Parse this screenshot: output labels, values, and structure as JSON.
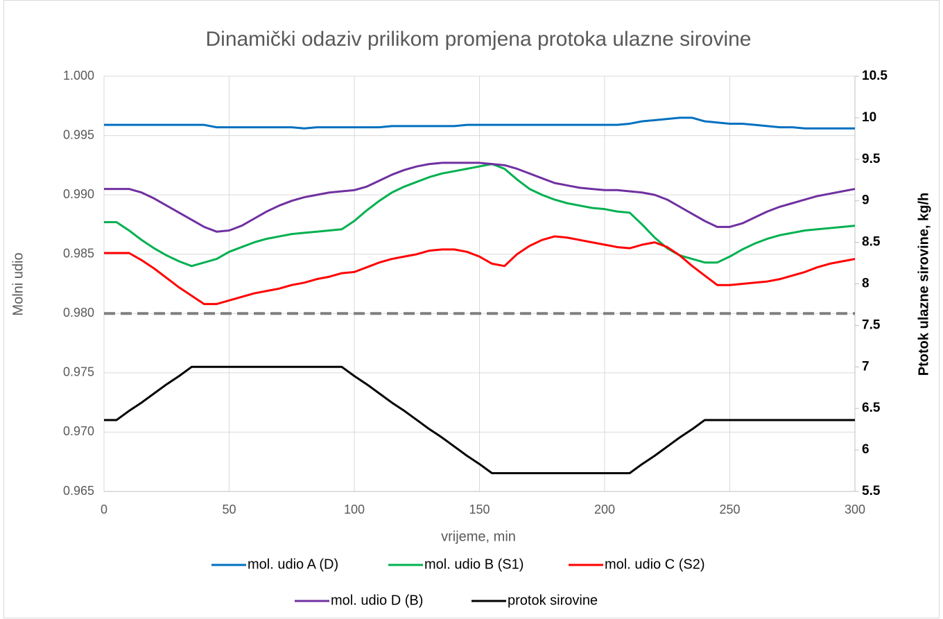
{
  "chart_data": {
    "type": "line",
    "title": "Dinamički odaziv prilikom promjena protoka ulazne sirovine",
    "xlabel": "vrijeme, min",
    "ylabel": "Molni udio",
    "y2label": "Ptotok ulazne sirovine, kg/h",
    "x": [
      0,
      5,
      10,
      15,
      20,
      25,
      30,
      35,
      40,
      45,
      50,
      55,
      60,
      65,
      70,
      75,
      80,
      85,
      90,
      95,
      100,
      105,
      110,
      115,
      120,
      125,
      130,
      135,
      140,
      145,
      150,
      155,
      160,
      165,
      170,
      175,
      180,
      185,
      190,
      195,
      200,
      205,
      210,
      215,
      220,
      225,
      230,
      235,
      240,
      245,
      250,
      255,
      260,
      265,
      270,
      275,
      280,
      285,
      290,
      295,
      300
    ],
    "xlim": [
      0,
      300
    ],
    "xticks": [
      0,
      50,
      100,
      150,
      200,
      250,
      300
    ],
    "ylim": [
      0.965,
      1.0
    ],
    "yticks": [
      {
        "value": 0.965,
        "label": "0.965"
      },
      {
        "value": 0.97,
        "label": "0.970"
      },
      {
        "value": 0.975,
        "label": "0.975"
      },
      {
        "value": 0.98,
        "label": "0.980"
      },
      {
        "value": 0.985,
        "label": "0.985"
      },
      {
        "value": 0.99,
        "label": "0.990"
      },
      {
        "value": 0.995,
        "label": "0.995"
      },
      {
        "value": 1.0,
        "label": "1.000"
      }
    ],
    "y2lim": [
      5.5,
      10.5
    ],
    "y2ticks": [
      5.5,
      6,
      6.5,
      7,
      7.5,
      8,
      8.5,
      9,
      9.5,
      10,
      10.5
    ],
    "grid": true,
    "hlines": [
      {
        "y": 0.98,
        "color": "#7f7f7f",
        "dash": true
      }
    ],
    "legend": "bottom",
    "series": [
      {
        "name": "mol. udio A (D)",
        "color": "#0070c0",
        "values": [
          0.9959,
          0.9959,
          0.9959,
          0.9959,
          0.9959,
          0.9959,
          0.9959,
          0.9959,
          0.9959,
          0.9957,
          0.9957,
          0.9957,
          0.9957,
          0.9957,
          0.9957,
          0.9957,
          0.9956,
          0.9957,
          0.9957,
          0.9957,
          0.9957,
          0.9957,
          0.9957,
          0.9958,
          0.9958,
          0.9958,
          0.9958,
          0.9958,
          0.9958,
          0.9959,
          0.9959,
          0.9959,
          0.9959,
          0.9959,
          0.9959,
          0.9959,
          0.9959,
          0.9959,
          0.9959,
          0.9959,
          0.9959,
          0.9959,
          0.996,
          0.9962,
          0.9963,
          0.9964,
          0.9965,
          0.9965,
          0.9962,
          0.9961,
          0.996,
          0.996,
          0.9959,
          0.9958,
          0.9957,
          0.9957,
          0.9956,
          0.9956,
          0.9956,
          0.9956,
          0.9956
        ]
      },
      {
        "name": "mol. udio B (S1)",
        "color": "#00b050",
        "values": [
          0.9877,
          0.9877,
          0.987,
          0.9862,
          0.9855,
          0.9849,
          0.9844,
          0.984,
          0.9843,
          0.9846,
          0.9852,
          0.9856,
          0.986,
          0.9863,
          0.9865,
          0.9867,
          0.9868,
          0.9869,
          0.987,
          0.9871,
          0.9878,
          0.9887,
          0.9895,
          0.9902,
          0.9907,
          0.9911,
          0.9915,
          0.9918,
          0.992,
          0.9922,
          0.9924,
          0.9926,
          0.9922,
          0.9913,
          0.9905,
          0.99,
          0.9896,
          0.9893,
          0.9891,
          0.9889,
          0.9888,
          0.9886,
          0.9885,
          0.9875,
          0.9864,
          0.9855,
          0.9849,
          0.9846,
          0.9843,
          0.9843,
          0.9848,
          0.9854,
          0.9859,
          0.9863,
          0.9866,
          0.9868,
          0.987,
          0.9871,
          0.9872,
          0.9873,
          0.9874
        ]
      },
      {
        "name": "mol. udio C (S2)",
        "color": "#ff0000",
        "values": [
          0.9851,
          0.9851,
          0.9851,
          0.9845,
          0.9838,
          0.983,
          0.9822,
          0.9815,
          0.9808,
          0.9808,
          0.9811,
          0.9814,
          0.9817,
          0.9819,
          0.9821,
          0.9824,
          0.9826,
          0.9829,
          0.9831,
          0.9834,
          0.9835,
          0.9839,
          0.9843,
          0.9846,
          0.9848,
          0.985,
          0.9853,
          0.9854,
          0.9854,
          0.9852,
          0.9848,
          0.9842,
          0.984,
          0.985,
          0.9857,
          0.9862,
          0.9865,
          0.9864,
          0.9862,
          0.986,
          0.9858,
          0.9856,
          0.9855,
          0.9858,
          0.986,
          0.9856,
          0.9849,
          0.984,
          0.9832,
          0.9824,
          0.9824,
          0.9825,
          0.9826,
          0.9827,
          0.9829,
          0.9832,
          0.9835,
          0.9839,
          0.9842,
          0.9844,
          0.9846
        ]
      },
      {
        "name": "mol. udio D (B)",
        "color": "#7030a0",
        "values": [
          0.9905,
          0.9905,
          0.9905,
          0.9902,
          0.9897,
          0.9891,
          0.9885,
          0.9879,
          0.9873,
          0.9869,
          0.987,
          0.9874,
          0.988,
          0.9886,
          0.9891,
          0.9895,
          0.9898,
          0.99,
          0.9902,
          0.9903,
          0.9904,
          0.9907,
          0.9912,
          0.9917,
          0.9921,
          0.9924,
          0.9926,
          0.9927,
          0.9927,
          0.9927,
          0.9927,
          0.9926,
          0.9925,
          0.9922,
          0.9918,
          0.9914,
          0.991,
          0.9908,
          0.9906,
          0.9905,
          0.9904,
          0.9904,
          0.9903,
          0.9902,
          0.99,
          0.9896,
          0.989,
          0.9884,
          0.9878,
          0.9873,
          0.9873,
          0.9876,
          0.9881,
          0.9886,
          0.989,
          0.9893,
          0.9896,
          0.9899,
          0.9901,
          0.9903,
          0.9905
        ]
      },
      {
        "name": "protok sirovine",
        "color": "#000000",
        "axis": "y2",
        "values": [
          6.36,
          6.36,
          6.47,
          6.57,
          6.68,
          6.79,
          6.89,
          7.0,
          7.0,
          7.0,
          7.0,
          7.0,
          7.0,
          7.0,
          7.0,
          7.0,
          7.0,
          7.0,
          7.0,
          7.0,
          6.89,
          6.79,
          6.68,
          6.57,
          6.47,
          6.36,
          6.25,
          6.15,
          6.04,
          5.93,
          5.83,
          5.72,
          5.72,
          5.72,
          5.72,
          5.72,
          5.72,
          5.72,
          5.72,
          5.72,
          5.72,
          5.72,
          5.72,
          5.83,
          5.93,
          6.04,
          6.15,
          6.25,
          6.36,
          6.36,
          6.36,
          6.36,
          6.36,
          6.36,
          6.36,
          6.36,
          6.36,
          6.36,
          6.36,
          6.36,
          6.36
        ]
      }
    ]
  }
}
